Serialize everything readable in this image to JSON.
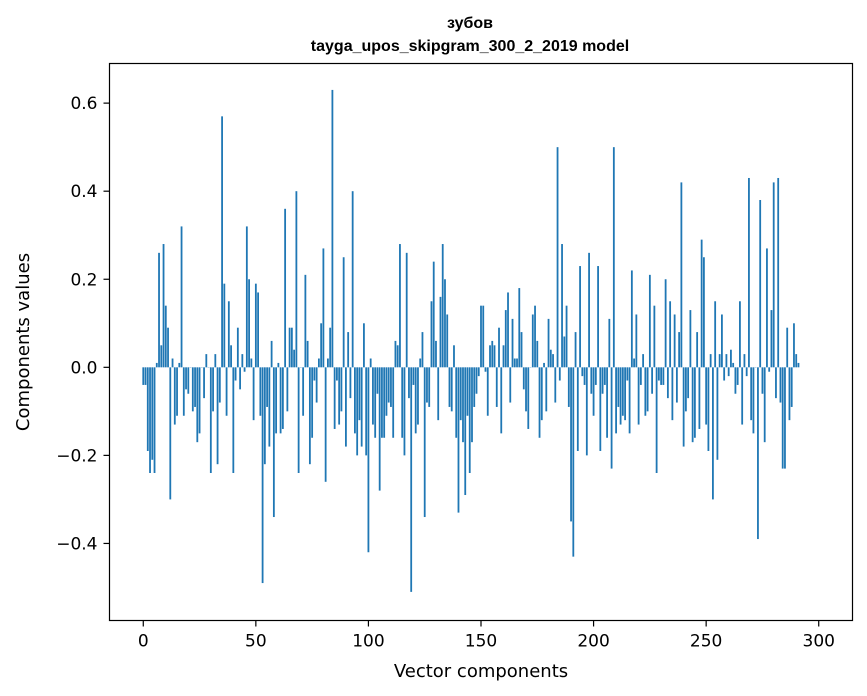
{
  "chart_data": {
    "type": "bar",
    "title": "зубов",
    "subtitle": "tayga_upos_skipgram_300_2_2019 model",
    "xlabel": "Vector components",
    "ylabel": "Components values",
    "xlim": [
      -15,
      315
    ],
    "ylim": [
      -0.575,
      0.69
    ],
    "xticks": [
      0,
      50,
      100,
      150,
      200,
      250,
      300
    ],
    "yticks": [
      -0.4,
      -0.2,
      0.0,
      0.2,
      0.4,
      0.6
    ],
    "ytick_labels": [
      "−0.4",
      "−0.2",
      "0.0",
      "0.2",
      "0.4",
      "0.6"
    ],
    "xtick_labels": [
      "0",
      "50",
      "100",
      "150",
      "200",
      "250",
      "300"
    ],
    "bar_color": "#1f77b4",
    "grid": false,
    "values": [
      -0.04,
      -0.04,
      -0.19,
      -0.24,
      -0.21,
      -0.24,
      0.01,
      0.26,
      0.05,
      0.28,
      0.14,
      0.09,
      -0.3,
      0.02,
      -0.13,
      -0.11,
      0.01,
      0.32,
      -0.11,
      -0.05,
      -0.06,
      0.0,
      -0.1,
      -0.09,
      -0.17,
      -0.15,
      0.0,
      -0.07,
      0.03,
      0.0,
      -0.24,
      -0.1,
      0.03,
      -0.22,
      -0.08,
      0.57,
      0.19,
      -0.11,
      0.15,
      0.05,
      -0.24,
      -0.03,
      0.09,
      -0.05,
      0.03,
      -0.01,
      0.32,
      0.2,
      0.02,
      -0.12,
      0.19,
      0.17,
      -0.11,
      -0.49,
      -0.22,
      -0.09,
      -0.18,
      0.06,
      -0.34,
      -0.15,
      0.01,
      -0.15,
      -0.14,
      0.36,
      -0.1,
      0.09,
      0.09,
      0.04,
      0.4,
      -0.24,
      0.0,
      -0.11,
      0.21,
      0.06,
      -0.22,
      -0.16,
      -0.03,
      -0.08,
      0.02,
      0.1,
      0.27,
      -0.26,
      0.02,
      0.09,
      0.63,
      -0.14,
      -0.03,
      -0.13,
      -0.1,
      0.25,
      -0.18,
      0.08,
      -0.07,
      0.4,
      -0.15,
      -0.2,
      -0.12,
      -0.18,
      0.1,
      -0.2,
      -0.42,
      0.02,
      -0.13,
      -0.16,
      -0.06,
      -0.28,
      -0.16,
      -0.16,
      -0.11,
      -0.08,
      -0.09,
      -0.16,
      0.06,
      0.05,
      0.28,
      -0.16,
      -0.2,
      0.26,
      -0.07,
      -0.51,
      -0.04,
      -0.15,
      -0.13,
      0.02,
      0.08,
      -0.34,
      -0.08,
      -0.09,
      0.15,
      0.24,
      0.06,
      -0.12,
      0.16,
      0.28,
      0.2,
      0.12,
      -0.09,
      -0.1,
      0.05,
      -0.16,
      -0.33,
      -0.12,
      -0.17,
      -0.29,
      -0.11,
      -0.24,
      -0.17,
      -0.09,
      -0.06,
      -0.02,
      0.14,
      0.14,
      -0.01,
      -0.11,
      0.05,
      0.06,
      0.05,
      -0.09,
      0.09,
      -0.15,
      0.05,
      0.13,
      0.17,
      -0.08,
      0.11,
      0.02,
      0.02,
      0.18,
      0.08,
      -0.05,
      -0.1,
      -0.14,
      0.0,
      0.12,
      0.14,
      0.06,
      -0.16,
      -0.12,
      0.01,
      -0.1,
      0.11,
      0.04,
      0.03,
      -0.08,
      0.5,
      -0.03,
      0.28,
      0.07,
      0.14,
      -0.09,
      -0.35,
      -0.43,
      0.08,
      -0.19,
      0.23,
      -0.02,
      -0.04,
      -0.2,
      0.26,
      -0.06,
      -0.11,
      -0.04,
      0.23,
      -0.19,
      -0.06,
      -0.04,
      -0.16,
      0.11,
      -0.23,
      0.5,
      -0.15,
      -0.09,
      -0.13,
      -0.11,
      -0.12,
      -0.03,
      -0.15,
      0.22,
      0.02,
      0.12,
      -0.13,
      -0.04,
      0.03,
      -0.11,
      -0.1,
      0.21,
      -0.06,
      0.14,
      -0.24,
      -0.03,
      -0.04,
      -0.04,
      0.2,
      -0.07,
      0.15,
      -0.12,
      0.12,
      -0.08,
      0.08,
      0.42,
      -0.18,
      -0.1,
      -0.07,
      0.13,
      -0.17,
      -0.16,
      0.08,
      -0.14,
      0.29,
      0.25,
      -0.13,
      -0.19,
      0.03,
      -0.3,
      0.15,
      -0.21,
      0.03,
      0.12,
      -0.03,
      0.03,
      -0.02,
      0.04,
      0.01,
      -0.06,
      -0.04,
      0.15,
      -0.13,
      0.03,
      -0.02,
      0.43,
      -0.12,
      -0.15,
      0.0,
      -0.39,
      0.38,
      -0.06,
      -0.17,
      0.27,
      -0.01,
      0.13,
      0.42,
      -0.07,
      0.43,
      -0.08,
      -0.23,
      -0.23,
      0.09,
      -0.12,
      -0.09,
      0.1,
      0.03,
      0.01
    ]
  }
}
